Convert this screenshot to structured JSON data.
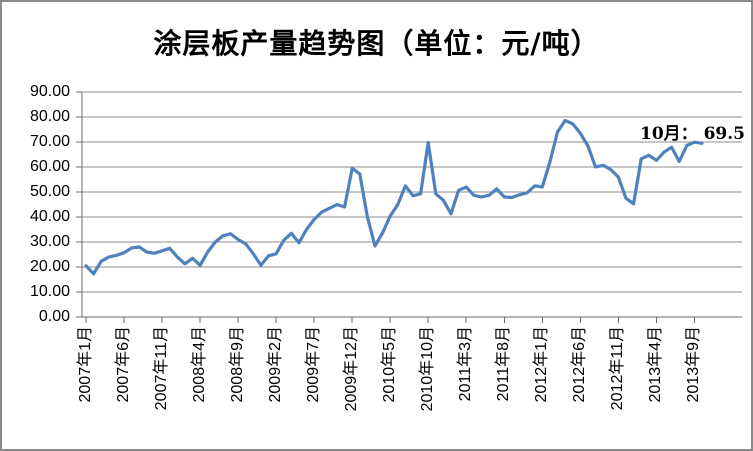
{
  "chart": {
    "title": "涂层板产量趋势图（单位：元/吨）",
    "annotation_label": "10月： 69.5",
    "colors": {
      "line": "#4F81BD",
      "grid": "#8E8E8E",
      "axis": "#6B6B6B",
      "border": "#8A8A8A",
      "text": "#000000",
      "background": "#FFFFFF"
    }
  },
  "y_axis": {
    "labels": [
      "90.00",
      "80.00",
      "70.00",
      "60.00",
      "50.00",
      "40.00",
      "30.00",
      "20.00",
      "10.00",
      "0.00"
    ]
  },
  "x_axis": {
    "labels": [
      "2007年1月",
      "2007年6月",
      "2007年11月",
      "2008年4月",
      "2008年9月",
      "2009年2月",
      "2009年7月",
      "2009年12月",
      "2010年5月",
      "2010年10月",
      "2011年3月",
      "2011年8月",
      "2012年1月",
      "2012年6月",
      "2012年11月",
      "2013年4月",
      "2013年9月"
    ]
  },
  "chart_data": {
    "type": "line",
    "title": "涂层板产量趋势图（单位：元/吨）",
    "unit": "元/吨",
    "x_interval": "monthly",
    "x_start": "2007年1月",
    "x_end": "2013年10月",
    "x_tick_labels": [
      "2007年1月",
      "2007年6月",
      "2007年11月",
      "2008年4月",
      "2008年9月",
      "2009年2月",
      "2009年7月",
      "2009年12月",
      "2010年5月",
      "2010年10月",
      "2011年3月",
      "2011年8月",
      "2012年1月",
      "2012年6月",
      "2012年11月",
      "2013年4月",
      "2013年9月"
    ],
    "ylim": [
      0,
      90
    ],
    "y_tick_step": 10,
    "grid": true,
    "legend": false,
    "annotation": {
      "text": "10月： 69.5",
      "x": "2013年10月",
      "value": 69.5
    },
    "values": [
      20.5,
      17.3,
      22.3,
      24.0,
      24.7,
      25.7,
      27.6,
      28.0,
      26.0,
      25.5,
      26.5,
      27.5,
      24.0,
      21.3,
      23.5,
      20.7,
      26.0,
      30.0,
      32.5,
      33.3,
      31.0,
      29.3,
      25.3,
      20.7,
      24.5,
      25.3,
      30.7,
      33.5,
      29.7,
      35.0,
      39.0,
      42.0,
      43.5,
      45.0,
      44.0,
      59.5,
      57.2,
      40.0,
      28.4,
      33.7,
      40.4,
      45.0,
      52.5,
      48.5,
      49.3,
      69.8,
      49.3,
      46.7,
      41.3,
      50.7,
      52.0,
      48.7,
      48.0,
      48.7,
      51.3,
      48.0,
      47.8,
      48.9,
      49.7,
      52.5,
      52.0,
      62.0,
      74.0,
      78.6,
      77.3,
      73.5,
      68.5,
      60.0,
      60.7,
      59.0,
      56.0,
      47.5,
      45.3,
      63.3,
      64.7,
      62.7,
      65.9,
      67.9,
      62.2,
      68.6,
      69.9,
      69.5
    ]
  }
}
